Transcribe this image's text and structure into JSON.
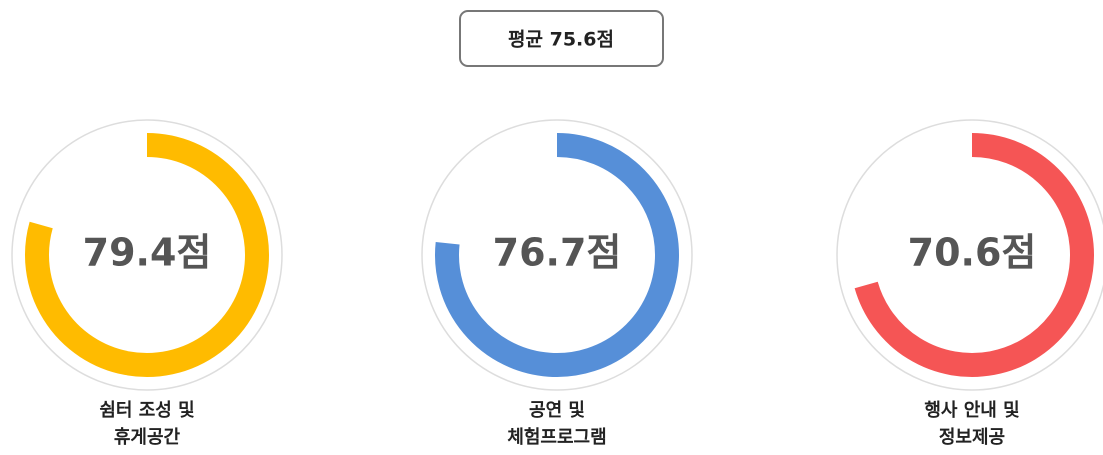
{
  "chart_data": {
    "type": "radial",
    "subtitle": "평균 75.6점",
    "categories": [
      [
        "쉼터 조성 및",
        "휴게공간"
      ],
      [
        "공연 및",
        "체험프로그램"
      ],
      [
        "행사 안내 및",
        "정보제공"
      ]
    ],
    "values": [
      79.4,
      76.7,
      70.6
    ],
    "value_labels": [
      "79.4점",
      "76.7점",
      "70.6점"
    ],
    "colors": [
      "#ffbb00",
      "#568fd8",
      "#f55555"
    ],
    "ylim": [
      0,
      100
    ]
  }
}
